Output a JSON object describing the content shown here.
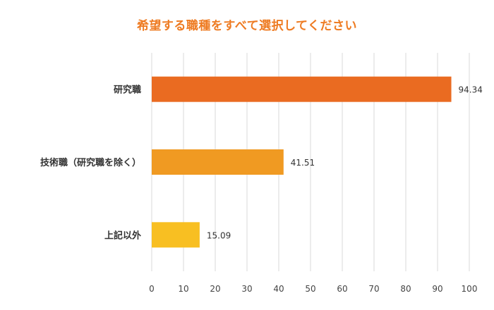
{
  "colors": {
    "title": "#ee7b22",
    "grid": "#d9d9d9",
    "bars": [
      "#ea6b21",
      "#f09a22",
      "#f8bf22"
    ]
  },
  "chart_data": {
    "type": "bar",
    "orientation": "horizontal",
    "title": "希望する職種をすべて選択してください",
    "categories": [
      "研究職",
      "技術職（研究職を除く）",
      "上記以外"
    ],
    "values": [
      94.34,
      41.51,
      15.09
    ],
    "data_labels": [
      "94.34",
      "41.51",
      "15.09"
    ],
    "xlim": [
      0,
      100
    ],
    "xticks": [
      0,
      10,
      20,
      30,
      40,
      50,
      60,
      70,
      80,
      90,
      100
    ],
    "grid": true,
    "legend": "none"
  }
}
